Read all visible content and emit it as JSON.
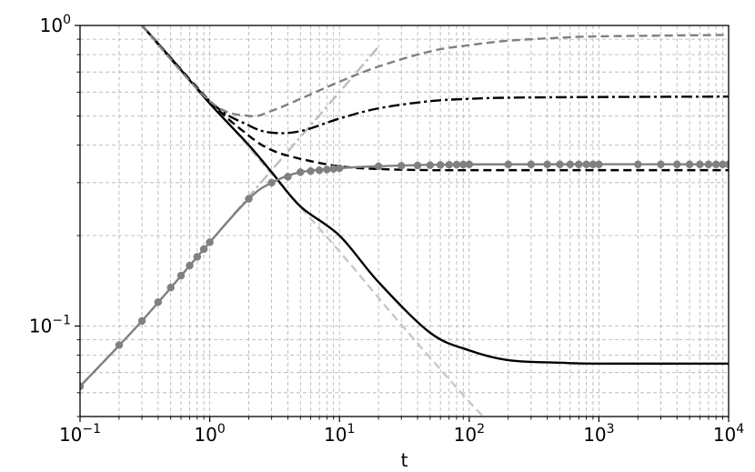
{
  "chart_data": {
    "type": "line",
    "title": "",
    "xlabel": "t",
    "ylabel": "",
    "xscale": "log",
    "yscale": "log",
    "xlim": [
      0.1,
      10000
    ],
    "ylim": [
      0.05,
      1
    ],
    "grid": true,
    "x_ticks": [
      {
        "value": 0.1,
        "base": "10",
        "exp": "−1"
      },
      {
        "value": 1,
        "base": "10",
        "exp": "0"
      },
      {
        "value": 10,
        "base": "10",
        "exp": "1"
      },
      {
        "value": 100,
        "base": "10",
        "exp": "2"
      },
      {
        "value": 1000,
        "base": "10",
        "exp": "3"
      },
      {
        "value": 10000,
        "base": "10",
        "exp": "4"
      }
    ],
    "y_ticks": [
      {
        "value": 0.1,
        "base": "10",
        "exp": "−1"
      },
      {
        "value": 1,
        "base": "10",
        "exp": "0"
      }
    ],
    "series": [
      {
        "style": "light-gray dash-dot",
        "color": "#bdbdbd",
        "x": [
          0.1,
          0.3,
          1,
          3,
          10,
          20
        ],
        "y": [
          0.063,
          0.104,
          0.19,
          0.33,
          0.6,
          0.85
        ]
      },
      {
        "style": "light-gray dashed",
        "color": "#c8c8c8",
        "x": [
          0.3,
          1,
          3,
          10,
          30,
          100,
          130
        ],
        "y": [
          1.0,
          0.56,
          0.32,
          0.177,
          0.101,
          0.056,
          0.05
        ]
      },
      {
        "style": "solid black",
        "color": "#000000",
        "x": [
          0.3,
          0.5,
          1,
          2,
          3,
          5,
          10,
          20,
          50,
          100,
          200,
          500,
          1000,
          10000
        ],
        "y": [
          1.0,
          0.78,
          0.55,
          0.4,
          0.325,
          0.25,
          0.2,
          0.14,
          0.095,
          0.083,
          0.077,
          0.0755,
          0.075,
          0.075
        ]
      },
      {
        "style": "dashed black",
        "color": "#000000",
        "x": [
          0.3,
          1,
          2,
          3,
          5,
          10,
          20,
          50,
          100,
          1000,
          10000
        ],
        "y": [
          1.0,
          0.56,
          0.43,
          0.385,
          0.36,
          0.34,
          0.333,
          0.33,
          0.33,
          0.33,
          0.33
        ]
      },
      {
        "style": "dash-dot black",
        "color": "#000000",
        "x": [
          0.3,
          1,
          2,
          3,
          5,
          10,
          20,
          50,
          100,
          200,
          1000,
          10000
        ],
        "y": [
          1.0,
          0.56,
          0.465,
          0.44,
          0.445,
          0.49,
          0.53,
          0.56,
          0.57,
          0.575,
          0.578,
          0.58
        ]
      },
      {
        "style": "dashed gray",
        "color": "#808080",
        "x": [
          0.3,
          1,
          2,
          3,
          5,
          10,
          20,
          50,
          100,
          200,
          500,
          1000,
          10000
        ],
        "y": [
          1.0,
          0.56,
          0.5,
          0.52,
          0.57,
          0.65,
          0.73,
          0.82,
          0.86,
          0.89,
          0.91,
          0.92,
          0.93
        ]
      },
      {
        "style": "solid gray with circle markers",
        "color": "#808080",
        "x": [
          0.1,
          0.3,
          1,
          2,
          3,
          5,
          10,
          20,
          100,
          10000
        ],
        "y": [
          0.063,
          0.104,
          0.19,
          0.265,
          0.3,
          0.325,
          0.335,
          0.34,
          0.345,
          0.345
        ],
        "markers": [
          0.1,
          0.2,
          0.3,
          0.4,
          0.5,
          0.6,
          0.7,
          0.8,
          0.9,
          1,
          2,
          3,
          4,
          5,
          6,
          7,
          8,
          9,
          10,
          20,
          30,
          40,
          50,
          60,
          70,
          80,
          90,
          100,
          200,
          300,
          400,
          500,
          600,
          700,
          800,
          900,
          1000,
          2000,
          3000,
          4000,
          5000,
          6000,
          7000,
          8000,
          9000,
          10000
        ]
      }
    ]
  }
}
